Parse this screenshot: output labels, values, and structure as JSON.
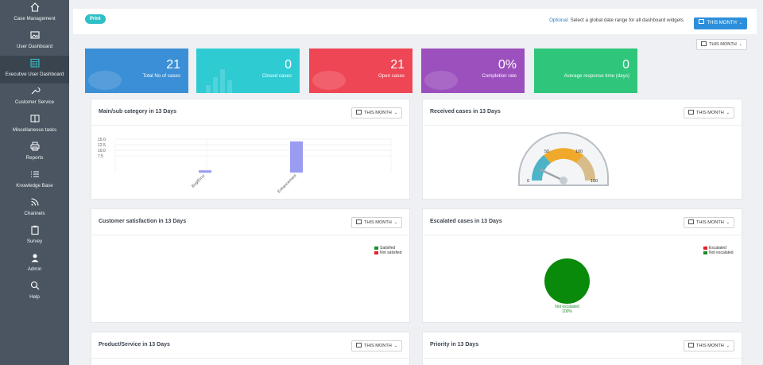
{
  "sidebar": {
    "items": [
      {
        "label": "Case Management",
        "icon": "home-icon"
      },
      {
        "label": "User Dashboard",
        "icon": "image-icon"
      },
      {
        "label": "Executive User Dashboard",
        "icon": "calendar-grid-icon"
      },
      {
        "label": "Customer Service",
        "icon": "wrench-icon"
      },
      {
        "label": "Miscellaneous tasks",
        "icon": "book-icon"
      },
      {
        "label": "Reports",
        "icon": "printer-icon"
      },
      {
        "label": "Knowledge Base",
        "icon": "list-icon"
      },
      {
        "label": "Channels",
        "icon": "rss-icon"
      },
      {
        "label": "Survey",
        "icon": "clipboard-icon"
      },
      {
        "label": "Admin",
        "icon": "user-icon"
      },
      {
        "label": "Help",
        "icon": "search-icon"
      }
    ],
    "active_index": 2
  },
  "topbar": {
    "print_label": "Print",
    "optional_prefix": "Optional:",
    "optional_text": " Select a global date range for all dashboard widgets",
    "global_range": "THIS MONTH"
  },
  "secondary_range": "THIS MONTH",
  "stats": [
    {
      "value": "21",
      "label": "Total No of cases",
      "color": "#3b8fd6"
    },
    {
      "value": "0",
      "label": "Closed cases",
      "color": "#2fcbd3"
    },
    {
      "value": "21",
      "label": "Open cases",
      "color": "#ee4655"
    },
    {
      "value": "0%",
      "label": "Completion rate",
      "color": "#9b50bd"
    },
    {
      "value": "0",
      "label": "Average response time (days)",
      "color": "#2fc57a"
    }
  ],
  "widgets": {
    "main_sub": {
      "title": "Main/sub category in 13 Days",
      "range": "THIS MONTH"
    },
    "received": {
      "title": "Received cases in 13 Days",
      "range": "THIS MONTH"
    },
    "satisfaction": {
      "title": "Customer satisfaction in 13 Days",
      "range": "THIS MONTH"
    },
    "escalated": {
      "title": "Escalated cases in 13 Days",
      "range": "THIS MONTH"
    },
    "product": {
      "title": "Product/Service in 13 Days",
      "range": "THIS MONTH"
    },
    "priority": {
      "title": "Priority in 13 Days",
      "range": "THIS MONTH"
    }
  },
  "satisfaction_legend": [
    {
      "label": "Satisfied",
      "color": "#1e8b2e"
    },
    {
      "label": "Not satisfied",
      "color": "#e3202b"
    }
  ],
  "escalated_legend": [
    {
      "label": "Escalated",
      "color": "#e3202b"
    },
    {
      "label": "Not escalated",
      "color": "#1e8b2e"
    }
  ],
  "escalated_pie_label": "Not escalated",
  "escalated_pie_pct": "100%",
  "gauge": {
    "ticks": [
      "0",
      "50",
      "100",
      "150"
    ],
    "value": 21,
    "max": 150
  },
  "chart_data": {
    "type": "bar",
    "categories": [
      "Bug/Error",
      "Enhancement"
    ],
    "values": [
      1,
      14
    ],
    "ylim": [
      0,
      15
    ],
    "yticks": [
      "15.0",
      "12.5",
      "10.0",
      "7.5"
    ],
    "bar_color": "#9a9cf2"
  }
}
